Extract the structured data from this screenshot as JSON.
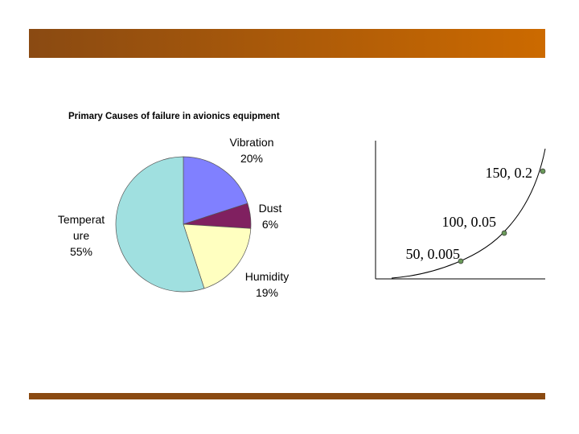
{
  "chart_data": {
    "type": "pie",
    "title": "Primary Causes of failure in avionics equipment",
    "categories": [
      "Vibration",
      "Dust",
      "Humidity",
      "Temperat\nure"
    ],
    "values": [
      20,
      6,
      19,
      55
    ],
    "value_labels": [
      "20%",
      "6%",
      "19%",
      "55%"
    ],
    "colors": [
      "#8080ff",
      "#802060",
      "#ffffc0",
      "#a0e0e0"
    ]
  },
  "curve": {
    "points": [
      {
        "label": "50, 0.005"
      },
      {
        "label": "100, 0.05"
      },
      {
        "label": "150, 0.2"
      }
    ]
  }
}
